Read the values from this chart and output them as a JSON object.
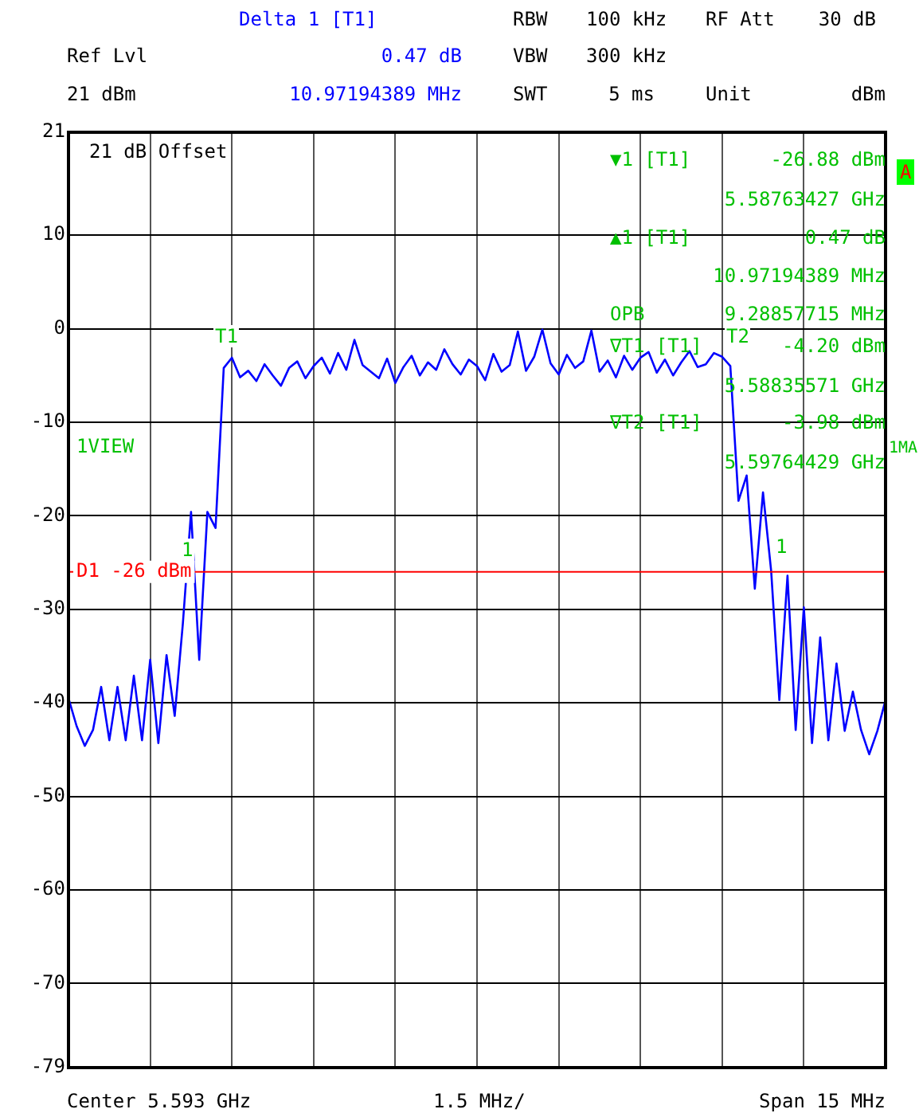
{
  "chart_data": {
    "type": "line",
    "categories": [
      null,
      null,
      null,
      null,
      null,
      null,
      null,
      null,
      null,
      null,
      null,
      null,
      null,
      null,
      null,
      null,
      null,
      null,
      null,
      null,
      null,
      null,
      null,
      null,
      null,
      null,
      null,
      null,
      null,
      null,
      null,
      null,
      null,
      null,
      null,
      null,
      null,
      null,
      null,
      null,
      null,
      null,
      null,
      null,
      null,
      null,
      null,
      null,
      null,
      null,
      null,
      null,
      null,
      null,
      null,
      null,
      null,
      null,
      null,
      null,
      null,
      null,
      null,
      null,
      null,
      null,
      null,
      null,
      null,
      null,
      null,
      null,
      null,
      null,
      null,
      null,
      null,
      null,
      null,
      null,
      null,
      null,
      null,
      null,
      null,
      null,
      null,
      null,
      null,
      null,
      null,
      null,
      null,
      null,
      null,
      null,
      null,
      null,
      null,
      null,
      null
    ],
    "series": [
      {
        "color": "#0000ff",
        "values": [
          -39.5,
          -42.5,
          -44.6,
          -42.9,
          -38.3,
          -44,
          -38.3,
          -44,
          -37.1,
          -44,
          -35.4,
          -44.3,
          -34.9,
          -41.4,
          -31.5,
          -19.6,
          -35.4,
          -19.6,
          -21.3,
          -4.2,
          -3.1,
          -5.2,
          -4.5,
          -5.6,
          -3.8,
          -5,
          -6.1,
          -4.2,
          -3.5,
          -5.3,
          -4,
          -3.1,
          -4.8,
          -2.6,
          -4.4,
          -1.2,
          -3.9,
          -4.6,
          -5.3,
          -3.2,
          -5.8,
          -4.1,
          -2.9,
          -5,
          -3.6,
          -4.4,
          -2.2,
          -3.8,
          -4.9,
          -3.3,
          -4,
          -5.5,
          -2.7,
          -4.6,
          -3.9,
          -0.3,
          -4.5,
          -3,
          -0.1,
          -3.7,
          -4.9,
          -2.8,
          -4.2,
          -3.5,
          -0.2,
          -4.6,
          -3.4,
          -5.2,
          -2.9,
          -4.4,
          -3.1,
          -2.5,
          -4.7,
          -3.3,
          -5,
          -3.6,
          -2.4,
          -4.1,
          -3.8,
          -2.6,
          -3,
          -3.98,
          -18.4,
          -15.7,
          -27.8,
          -17.5,
          -25.9,
          -39.7,
          -26.41,
          -42.9,
          -29.8,
          -44.3,
          -33,
          -44,
          -35.8,
          -43,
          -38.8,
          -42.9,
          -45.5,
          -43,
          -39.7
        ]
      }
    ],
    "ylim": [
      -79,
      21
    ],
    "yticks": [
      21,
      10,
      0,
      -10,
      -20,
      -30,
      -40,
      -50,
      -60,
      -70,
      -79
    ],
    "grid": true,
    "tick_labels": "y",
    "marker": "none",
    "ref_lines": [
      {
        "axis": "y",
        "value": -26,
        "label": "D1 -26 dBm",
        "color": "#ff0000"
      }
    ],
    "annotations": [
      "Delta 1 [T1]",
      "0.47 dB",
      "10.97194389 MHz",
      "Ref Lvl",
      "21 dBm",
      "RBW",
      "100 kHz",
      "RF Att",
      "30 dB",
      "VBW",
      "300 kHz",
      "SWT",
      "5 ms",
      "Unit",
      "dBm",
      "21 dB Offset",
      "1VIEW",
      "▼1 [T1]",
      "-26.88 dBm",
      "5.58763427 GHz",
      "▲1 [T1]",
      "0.47 dB",
      "10.97194389 MHz",
      "OPB",
      "9.28857715 MHz",
      "∇T1 [T1]",
      "-4.20 dBm",
      "5.58835571 GHz",
      "∇T2 [T1]",
      "-3.98 dBm",
      "5.59764429 GHz",
      "A",
      "1MA",
      "Center 5.593 GHz",
      "1.5 MHz/",
      "Span 15 MHz",
      "T1",
      "T2",
      "1",
      "1"
    ]
  }
}
